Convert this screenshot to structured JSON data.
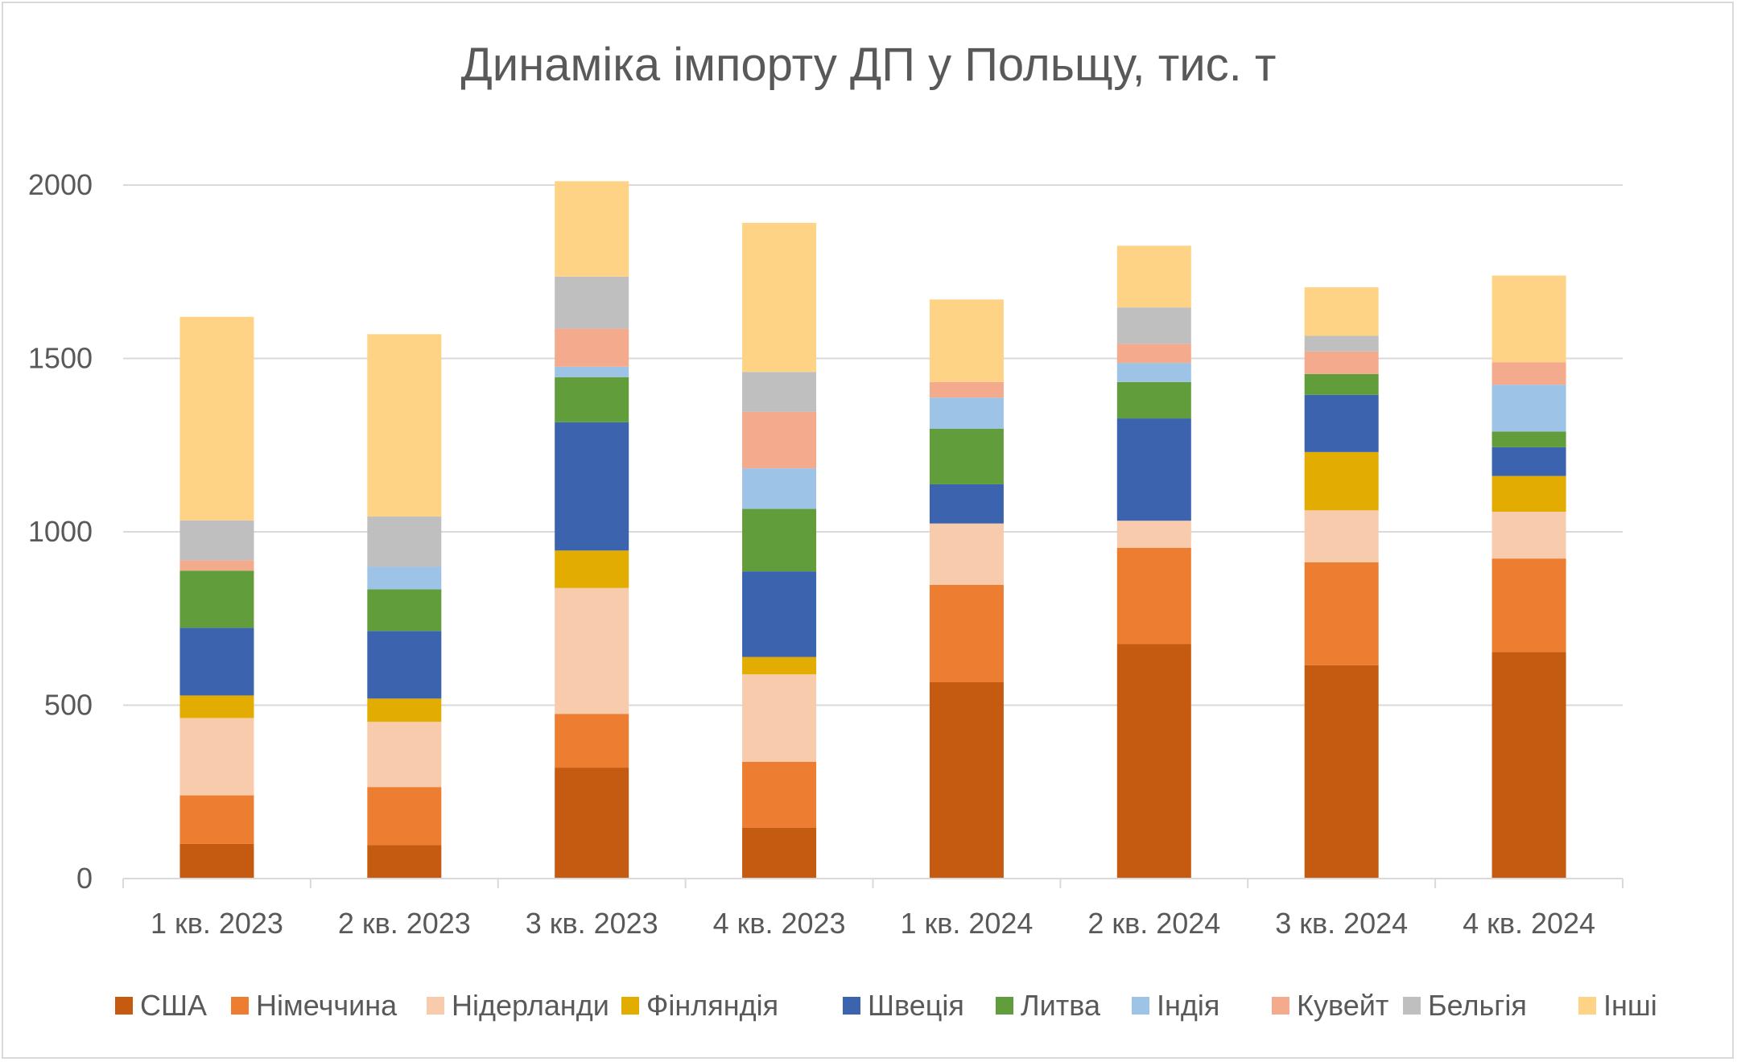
{
  "chart_data": {
    "type": "bar",
    "stacked": true,
    "title": "Динаміка імпорту ДП у Польщу, тис. т",
    "xlabel": "",
    "ylabel": "",
    "ylim": [
      0,
      2000
    ],
    "yticks": [
      0,
      500,
      1000,
      1500,
      2000
    ],
    "grid": true,
    "legend": "bottom",
    "categories": [
      "1 кв. 2023",
      "2 кв. 2023",
      "3 кв. 2023",
      "4 кв. 2023",
      "1 кв. 2024",
      "2 кв. 2024",
      "3 кв. 2024",
      "4 кв. 2024"
    ],
    "series": [
      {
        "name": "США",
        "color": "#c55a11",
        "values": [
          100,
          97,
          320,
          147,
          567,
          677,
          615,
          653
        ]
      },
      {
        "name": "Німеччина",
        "color": "#ed7d31",
        "values": [
          140,
          167,
          155,
          190,
          280,
          277,
          297,
          270
        ]
      },
      {
        "name": "Нідерланди",
        "color": "#f8cbad",
        "values": [
          223,
          188,
          363,
          252,
          177,
          78,
          150,
          135
        ]
      },
      {
        "name": "Фінляндія",
        "color": "#e2ac00",
        "values": [
          65,
          67,
          108,
          50,
          0,
          0,
          168,
          103
        ]
      },
      {
        "name": "Швеція",
        "color": "#3c64ae",
        "values": [
          195,
          195,
          370,
          247,
          113,
          295,
          165,
          83
        ]
      },
      {
        "name": "Литва",
        "color": "#629d3c",
        "values": [
          165,
          120,
          130,
          180,
          160,
          105,
          60,
          45
        ]
      },
      {
        "name": "Індія",
        "color": "#9dc3e6",
        "values": [
          0,
          65,
          30,
          117,
          90,
          55,
          0,
          135
        ]
      },
      {
        "name": "Кувейт",
        "color": "#f4aa8c",
        "values": [
          30,
          0,
          110,
          163,
          45,
          55,
          65,
          65
        ]
      },
      {
        "name": "Бельгія",
        "color": "#bfbfbf",
        "values": [
          115,
          145,
          150,
          115,
          0,
          105,
          45,
          0
        ]
      },
      {
        "name": "Інші",
        "color": "#ffd385",
        "values": [
          587,
          526,
          275,
          430,
          238,
          178,
          140,
          250
        ]
      }
    ]
  }
}
